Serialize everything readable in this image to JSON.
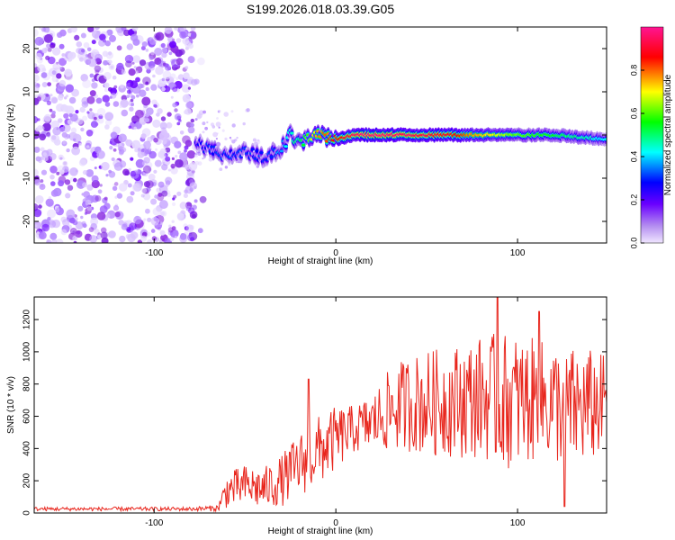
{
  "title": "S199.2026.018.03.39.G05",
  "colors": {
    "spec_bg_noise": "#8a2be2",
    "snr_line": "#e8261d",
    "axis": "#000000"
  },
  "chart_data": [
    {
      "type": "heatmap",
      "name": "spectrogram",
      "xlabel": "Height of straight line (km)",
      "ylabel": "Frequency (Hz)",
      "xlim": [
        -166,
        149
      ],
      "ylim": [
        -25,
        25
      ],
      "xticks": [
        -100,
        0,
        100
      ],
      "xtick_labels": [
        "-100",
        "0",
        "100"
      ],
      "yticks": [
        -20,
        -10,
        0,
        10,
        20
      ],
      "ytick_labels": [
        "-20",
        "-10",
        "0",
        "10",
        "20"
      ],
      "noise_region_x": [
        -166,
        -77
      ],
      "ridge": {
        "description_free_track": true,
        "x": [
          -77,
          -70,
          -60,
          -50,
          -40,
          -30,
          -25,
          -20,
          -10,
          0,
          10,
          20,
          40,
          60,
          80,
          100,
          120,
          149
        ],
        "freq": [
          -2,
          -3,
          -5,
          -4,
          -5,
          -3,
          0,
          -2,
          0,
          -1,
          0,
          0,
          0,
          0,
          0,
          0,
          0,
          -1
        ],
        "amplitude": [
          0.25,
          0.3,
          0.3,
          0.3,
          0.3,
          0.35,
          0.45,
          0.5,
          0.75,
          0.85,
          0.95,
          0.98,
          0.95,
          0.9,
          0.75,
          0.6,
          0.55,
          0.4
        ]
      }
    },
    {
      "type": "colorbar",
      "name": "colorbar",
      "label": "Normalized spectral amplitude",
      "range": [
        0,
        1
      ],
      "ticks": [
        0.0,
        0.2,
        0.4,
        0.6,
        0.8
      ],
      "tick_labels": [
        "0.0",
        "0.2",
        "0.4",
        "0.6",
        "0.8"
      ],
      "stops": [
        "#f0e6ff",
        "#8a2be2",
        "#0000ff",
        "#00ffff",
        "#00ff00",
        "#ffff00",
        "#ff0000",
        "#ff1493"
      ]
    },
    {
      "type": "line",
      "name": "snr",
      "xlabel": "Height of straight line (km)",
      "ylabel": "SNR (10 * v/v)",
      "xlim": [
        -166,
        149
      ],
      "ylim": [
        0,
        1340
      ],
      "xticks": [
        -100,
        0,
        100
      ],
      "xtick_labels": [
        "-100",
        "0",
        "100"
      ],
      "yticks": [
        0,
        200,
        400,
        600,
        800,
        1000,
        1200
      ],
      "ytick_labels": [
        "0",
        "200",
        "400",
        "600",
        "800",
        "1000",
        "1200"
      ],
      "envelope": {
        "x": [
          -166,
          -80,
          -65,
          -60,
          -50,
          -40,
          -30,
          -20,
          -10,
          0,
          10,
          20,
          30,
          40,
          50,
          60,
          70,
          80,
          90,
          100,
          110,
          120,
          130,
          140,
          149
        ],
        "mean": [
          25,
          25,
          30,
          140,
          170,
          150,
          200,
          300,
          380,
          460,
          520,
          560,
          640,
          680,
          680,
          690,
          700,
          720,
          700,
          690,
          700,
          680,
          650,
          660,
          680
        ],
        "amp": [
          12,
          12,
          20,
          110,
          130,
          130,
          160,
          200,
          220,
          200,
          150,
          180,
          260,
          300,
          330,
          340,
          360,
          380,
          420,
          420,
          380,
          380,
          380,
          360,
          300
        ]
      },
      "peaks": [
        {
          "x": -15,
          "y": 830
        },
        {
          "x": 89,
          "y": 1340
        },
        {
          "x": 112,
          "y": 1250
        },
        {
          "x": 126,
          "y": 40
        }
      ]
    }
  ]
}
